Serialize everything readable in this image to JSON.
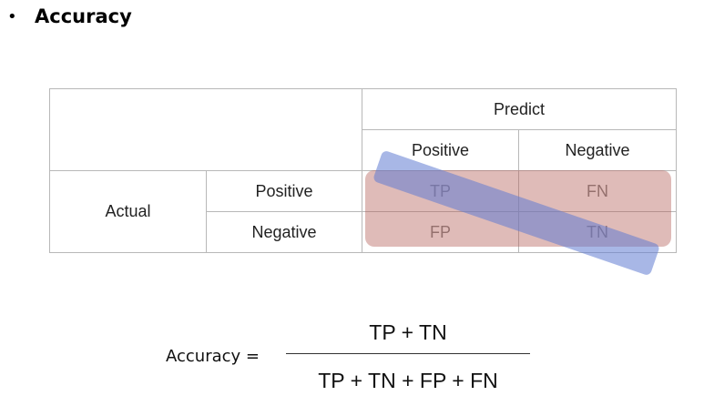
{
  "heading": {
    "bullet": "•",
    "text": "Accuracy"
  },
  "confusion_matrix": {
    "predict_header": "Predict",
    "actual_header": "Actual",
    "col_labels": [
      "Positive",
      "Negative"
    ],
    "row_labels": [
      "Positive",
      "Negative"
    ],
    "cells": [
      [
        "TP",
        "FN"
      ],
      [
        "FP",
        "TN"
      ]
    ],
    "highlight_colors": {
      "all_cells_band": "#b35c56",
      "diagonal_band": "#607cd2"
    }
  },
  "formula": {
    "label": "Accuracy =",
    "numerator": "TP + TN",
    "denominator": "TP + TN + FP + FN"
  }
}
